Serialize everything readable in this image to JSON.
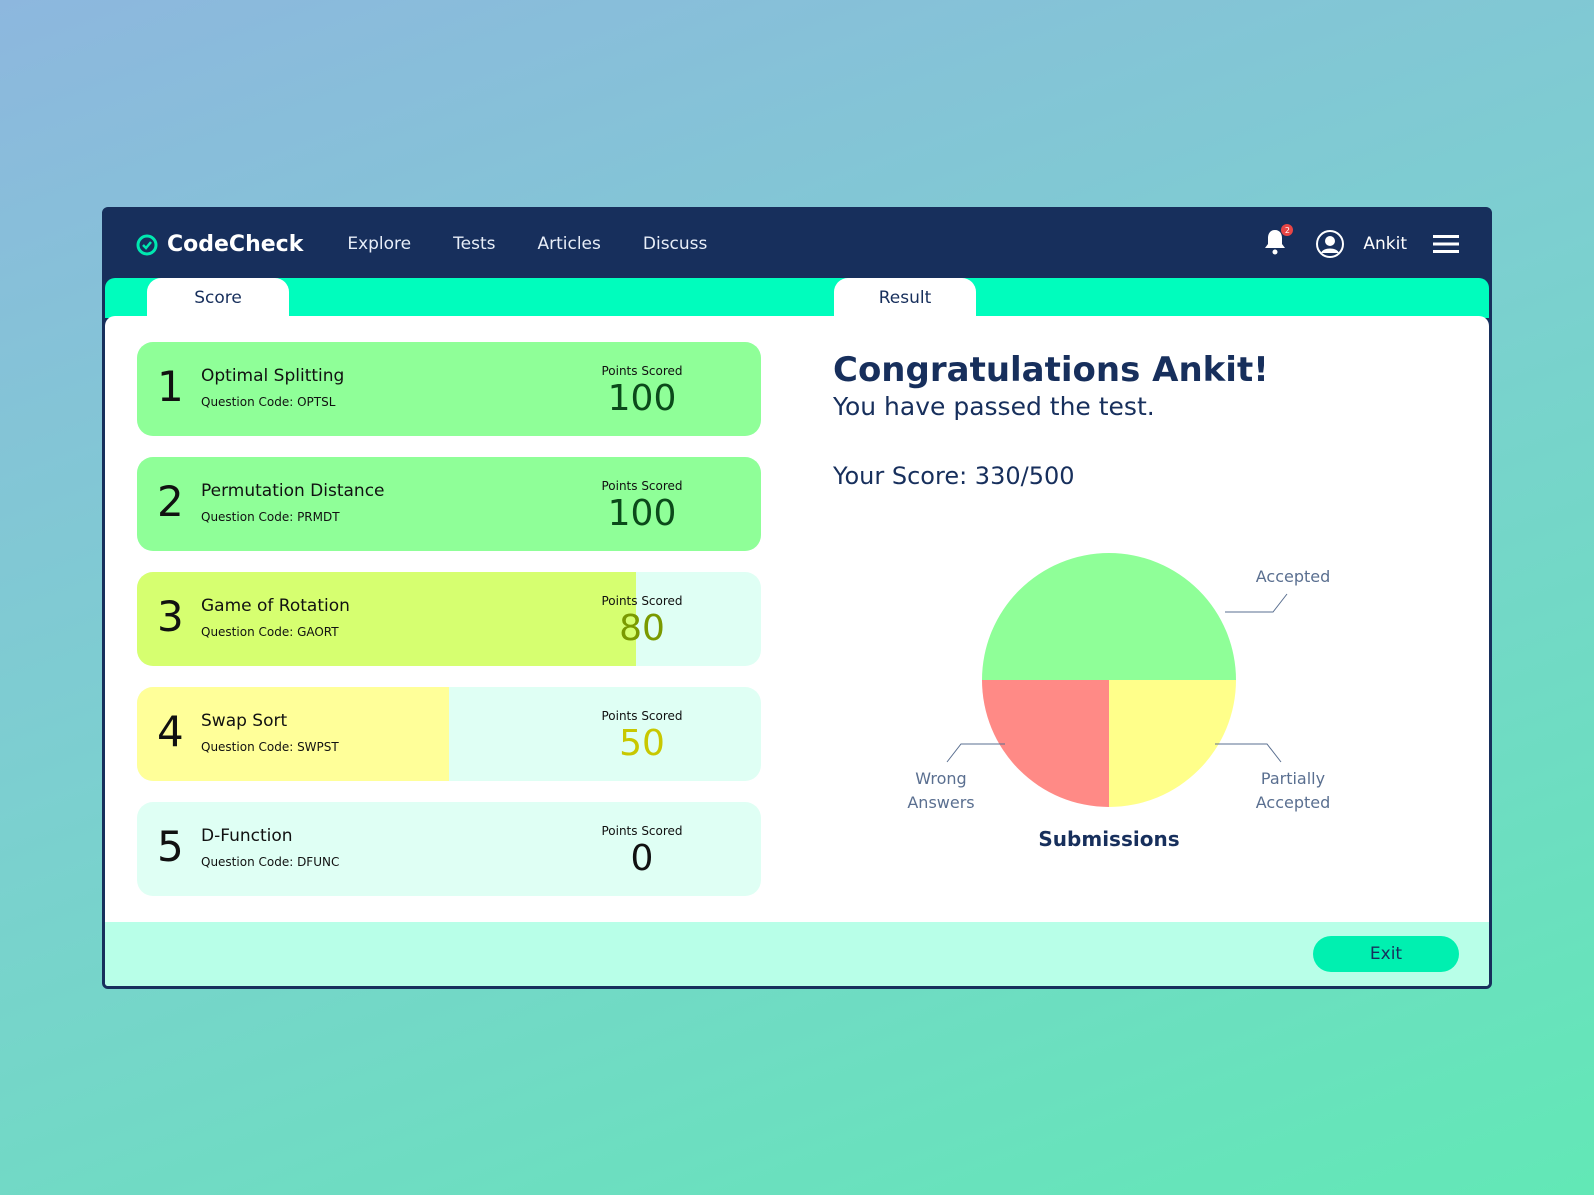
{
  "nav": {
    "brand": "CodeCheck",
    "links": [
      "Explore",
      "Tests",
      "Articles",
      "Discuss"
    ],
    "notifications": "2",
    "user": "Ankit"
  },
  "tabs": {
    "score": "Score",
    "result": "Result"
  },
  "questions": [
    {
      "n": "1",
      "title": "Optimal Splitting",
      "code": "Question Code: OPTSL",
      "label": "Points Scored",
      "points": "100",
      "pct": 100,
      "fill": "#8fff98",
      "color": "#0b4a1a"
    },
    {
      "n": "2",
      "title": "Permutation Distance",
      "code": "Question Code: PRMDT",
      "label": "Points Scored",
      "points": "100",
      "pct": 100,
      "fill": "#8fff98",
      "color": "#0b4a1a"
    },
    {
      "n": "3",
      "title": "Game of Rotation",
      "code": "Question Code: GAORT",
      "label": "Points Scored",
      "points": "80",
      "pct": 80,
      "fill": "#d6ff70",
      "color": "#7a9a00"
    },
    {
      "n": "4",
      "title": "Swap Sort",
      "code": "Question Code: SWPST",
      "label": "Points Scored",
      "points": "50",
      "pct": 50,
      "fill": "#ffff99",
      "color": "#c8c800"
    },
    {
      "n": "5",
      "title": "D-Function",
      "code": "Question Code: DFUNC",
      "label": "Points Scored",
      "points": "0",
      "pct": 0,
      "fill": "#8fff98",
      "color": "#111111"
    }
  ],
  "result": {
    "congrats": "Congratulations Ankit!",
    "passed": "You have passed the test.",
    "score": "Your Score: 330/500"
  },
  "chart_data": {
    "type": "pie",
    "title": "Submissions",
    "slices": [
      {
        "name": "Accepted",
        "value": 50,
        "color": "#8fff98"
      },
      {
        "name": "Partially Accepted",
        "value": 25,
        "color": "#ffff8a"
      },
      {
        "name": "Wrong Answers",
        "value": 25,
        "color": "#ff8a86"
      }
    ]
  },
  "footer": {
    "exit": "Exit"
  }
}
